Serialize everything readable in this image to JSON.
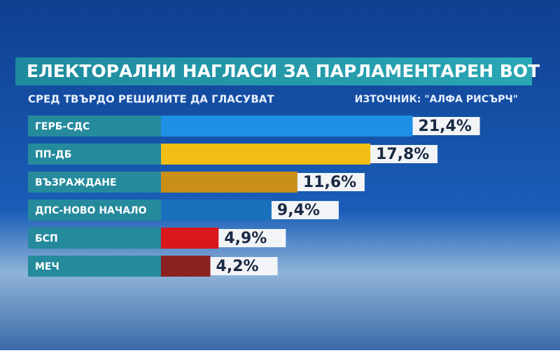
{
  "chart_data": {
    "type": "bar",
    "orientation": "horizontal",
    "title": "ЕЛЕКТОРАЛНИ НАГЛАСИ ЗА ПАРЛАМЕНТАРЕН ВОТ",
    "subtitle": "СРЕД ТВЪРДО РЕШИЛИТЕ ДА ГЛАСУВАТ",
    "source": "ИЗТОЧНИК: \"АЛФА РИСЪРЧ\"",
    "categories": [
      "ГЕРБ-СДС",
      "ПП-ДБ",
      "ВЪЗРАЖДАНЕ",
      "ДПС-НОВО НАЧАЛО",
      "БСП",
      "МЕЧ"
    ],
    "values": [
      21.4,
      17.8,
      11.6,
      9.4,
      4.9,
      4.2
    ],
    "value_labels": [
      "21,4%",
      "17,8%",
      "11,6%",
      "9,4%",
      "4,9%",
      "4,2%"
    ],
    "colors": [
      "#1e90e6",
      "#f2bd14",
      "#c98f18",
      "#1a70bd",
      "#d8181c",
      "#8a2222"
    ]
  }
}
